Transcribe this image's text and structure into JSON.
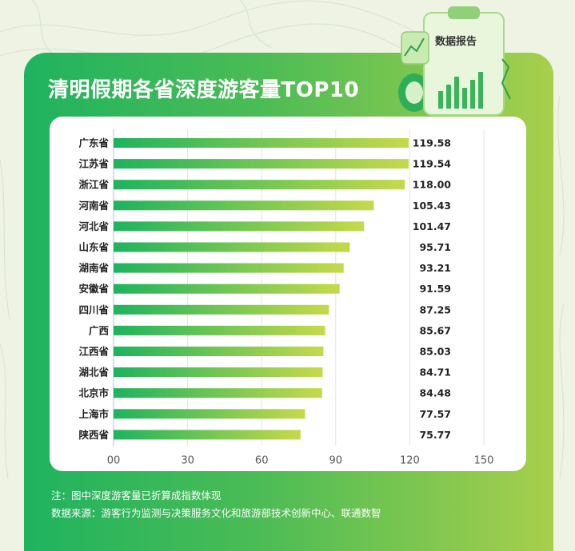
{
  "title": "清明假期各省深度游客量TOP10",
  "report_badge": "数据报告",
  "notes": {
    "note": "注：图中深度游客量已折算成指数体现",
    "source": "数据来源：游客行为监测与决策服务文化和旅游部技术创新中心、联通数智"
  },
  "colors": {
    "bar_start": "#1db35e",
    "bar_end": "#c6d94a",
    "panel_left": "#1fb35f",
    "panel_right": "#a7cf4c"
  },
  "chart_data": {
    "type": "bar",
    "orientation": "horizontal",
    "title": "清明假期各省深度游客量TOP10",
    "categories": [
      "广东省",
      "江苏省",
      "浙江省",
      "河南省",
      "河北省",
      "山东省",
      "湖南省",
      "安徽省",
      "四川省",
      "广西",
      "江西省",
      "湖北省",
      "北京市",
      "上海市",
      "陕西省"
    ],
    "values": [
      119.58,
      119.54,
      118.0,
      105.43,
      101.47,
      95.71,
      93.21,
      91.59,
      87.25,
      85.67,
      85.03,
      84.71,
      84.48,
      77.57,
      75.77
    ],
    "value_labels": [
      "119.58",
      "119.54",
      "118.00",
      "105.43",
      "101.47",
      "95.71",
      "93.21",
      "91.59",
      "87.25",
      "85.67",
      "85.03",
      "84.71",
      "84.48",
      "77.57",
      "75.77"
    ],
    "xticks": [
      "00",
      "30",
      "60",
      "90",
      "120",
      "150"
    ],
    "xlim": [
      0,
      150
    ],
    "grid": "vertical",
    "xlabel": "",
    "ylabel": ""
  }
}
